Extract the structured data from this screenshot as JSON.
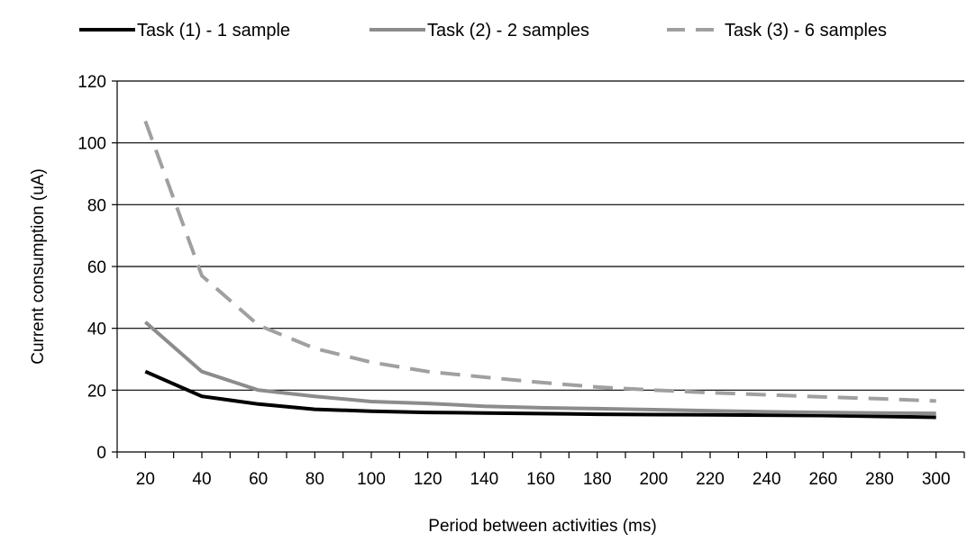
{
  "chart_data": {
    "type": "line",
    "xlabel": "Period between activities (ms)",
    "ylabel": "Current consumption (uA)",
    "ylim": [
      0,
      120
    ],
    "yticks": [
      0,
      20,
      40,
      60,
      80,
      100,
      120
    ],
    "xticks": [
      20,
      40,
      60,
      80,
      100,
      120,
      140,
      160,
      180,
      200,
      220,
      240,
      260,
      280,
      300
    ],
    "grid": "horizontal",
    "legend_position": "top",
    "series": [
      {
        "name": "Task (1) - 1 sample",
        "color": "#000000",
        "style": "solid",
        "x": [
          20,
          40,
          60,
          80,
          100,
          120,
          140,
          160,
          180,
          200,
          220,
          240,
          260,
          280,
          300
        ],
        "y": [
          26,
          18,
          15.5,
          13.8,
          13.2,
          12.8,
          12.6,
          12.4,
          12.2,
          12.1,
          12.0,
          11.9,
          11.8,
          11.5,
          11.2
        ]
      },
      {
        "name": "Task (2) - 2 samples",
        "color": "#8c8c8c",
        "style": "solid",
        "x": [
          20,
          40,
          60,
          80,
          100,
          120,
          140,
          160,
          180,
          200,
          220,
          240,
          260,
          280,
          300
        ],
        "y": [
          42,
          26,
          20,
          18,
          16.3,
          15.7,
          14.8,
          14.3,
          14.0,
          13.7,
          13.3,
          13.0,
          12.8,
          12.6,
          12.5
        ]
      },
      {
        "name": "Task (3) - 6 samples",
        "color": "#a0a0a0",
        "style": "dashed",
        "x": [
          20,
          40,
          60,
          80,
          100,
          120,
          140,
          160,
          180,
          200,
          220,
          240,
          260,
          280,
          300
        ],
        "y": [
          107,
          57,
          41,
          33.5,
          29,
          26,
          24.2,
          22.5,
          21,
          20,
          19.2,
          18.5,
          17.8,
          17.2,
          16.5
        ]
      }
    ]
  }
}
